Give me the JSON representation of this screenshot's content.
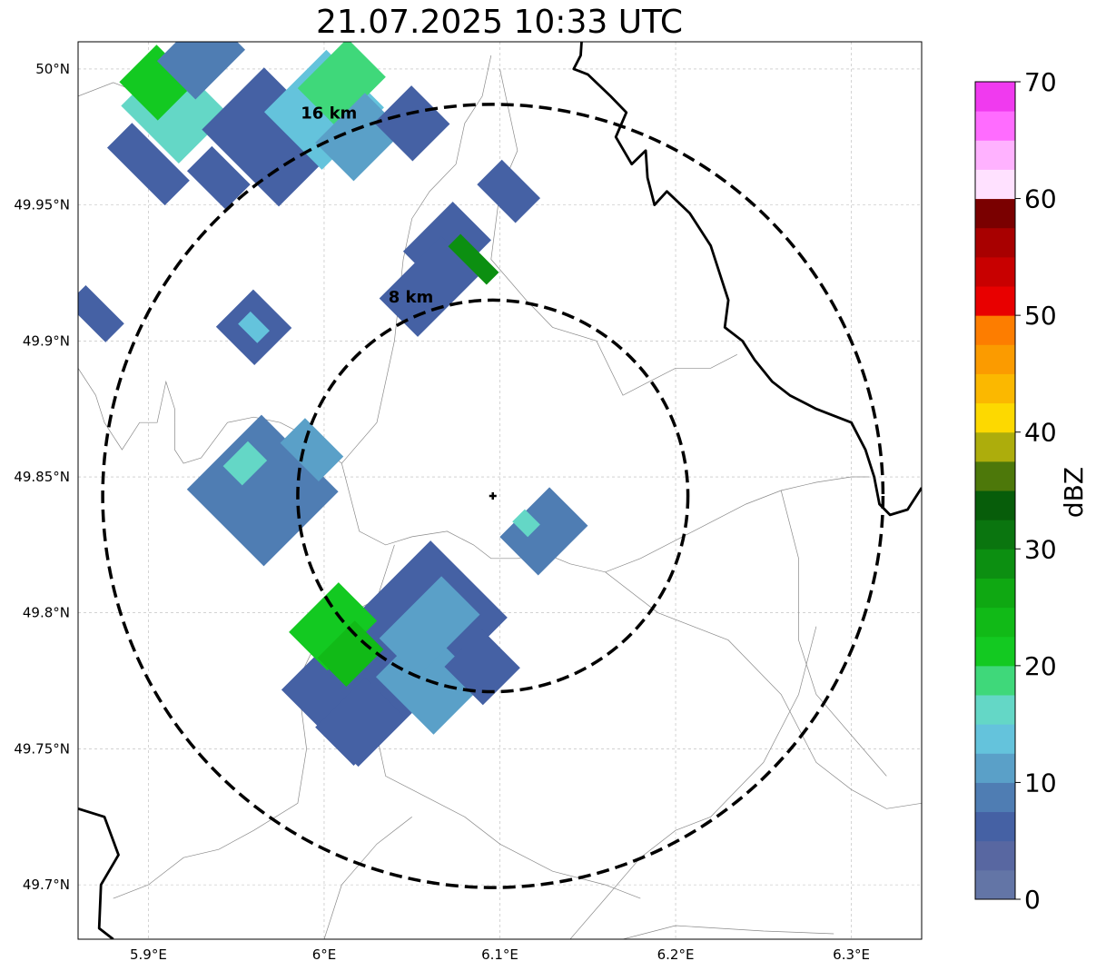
{
  "title": "21.07.2025 10:33 UTC",
  "map": {
    "lon_range": [
      5.86,
      6.34
    ],
    "lat_range": [
      49.68,
      50.01
    ],
    "lon_ticks": [
      {
        "value": 5.9,
        "label": "5.9°E"
      },
      {
        "value": 6.0,
        "label": "6°E"
      },
      {
        "value": 6.1,
        "label": "6.1°E"
      },
      {
        "value": 6.2,
        "label": "6.2°E"
      },
      {
        "value": 6.3,
        "label": "6.3°E"
      }
    ],
    "lat_ticks": [
      {
        "value": 49.7,
        "label": "49.7°N"
      },
      {
        "value": 49.75,
        "label": "49.75°N"
      },
      {
        "value": 49.8,
        "label": "49.8°N"
      },
      {
        "value": 49.85,
        "label": "49.85°N"
      },
      {
        "value": 49.9,
        "label": "49.9°N"
      },
      {
        "value": 49.95,
        "label": "49.95°N"
      },
      {
        "value": 50.0,
        "label": "50°N"
      }
    ],
    "grid": true,
    "radar_site": {
      "lon": 6.096,
      "lat": 49.843
    },
    "range_rings": [
      {
        "label": "8 km",
        "lat_radius": 0.072,
        "lon_radius": 0.111
      },
      {
        "label": "16 km",
        "lat_radius": 0.144,
        "lon_radius": 0.222
      }
    ],
    "national_border": [
      [
        [
          6.0,
          50.005
        ],
        [
          6.01,
          50.0
        ]
      ],
      [
        [
          6.147,
          50.015
        ],
        [
          6.146,
          50.005
        ],
        [
          6.142,
          50.0
        ],
        [
          6.15,
          49.998
        ],
        [
          6.163,
          49.99
        ],
        [
          6.172,
          49.984
        ],
        [
          6.166,
          49.975
        ],
        [
          6.175,
          49.965
        ],
        [
          6.183,
          49.97
        ],
        [
          6.184,
          49.96
        ],
        [
          6.188,
          49.95
        ],
        [
          6.195,
          49.955
        ],
        [
          6.208,
          49.947
        ],
        [
          6.215,
          49.94
        ],
        [
          6.22,
          49.935
        ],
        [
          6.225,
          49.925
        ],
        [
          6.23,
          49.915
        ],
        [
          6.228,
          49.905
        ],
        [
          6.238,
          49.9
        ],
        [
          6.245,
          49.893
        ],
        [
          6.255,
          49.885
        ],
        [
          6.265,
          49.88
        ],
        [
          6.28,
          49.875
        ],
        [
          6.3,
          49.87
        ],
        [
          6.308,
          49.86
        ],
        [
          6.313,
          49.85
        ],
        [
          6.316,
          49.84
        ],
        [
          6.322,
          49.836
        ],
        [
          6.332,
          49.838
        ],
        [
          6.34,
          49.846
        ]
      ],
      [
        [
          5.86,
          49.728
        ],
        [
          5.875,
          49.725
        ],
        [
          5.883,
          49.711
        ],
        [
          5.873,
          49.7
        ],
        [
          5.872,
          49.684
        ],
        [
          5.88,
          49.68
        ]
      ]
    ],
    "admin_lines": [
      [
        [
          5.86,
          49.99
        ],
        [
          5.88,
          49.995
        ],
        [
          5.9,
          49.99
        ],
        [
          5.915,
          49.985
        ],
        [
          5.92,
          49.97
        ]
      ],
      [
        [
          5.86,
          49.89
        ],
        [
          5.87,
          49.88
        ],
        [
          5.875,
          49.87
        ],
        [
          5.885,
          49.86
        ],
        [
          5.895,
          49.87
        ],
        [
          5.905,
          49.87
        ],
        [
          5.91,
          49.885
        ],
        [
          5.915,
          49.875
        ],
        [
          5.915,
          49.86
        ],
        [
          5.92,
          49.855
        ],
        [
          5.93,
          49.857
        ],
        [
          5.945,
          49.87
        ],
        [
          5.96,
          49.872
        ],
        [
          5.975,
          49.87
        ],
        [
          5.99,
          49.865
        ],
        [
          6.0,
          49.86
        ],
        [
          6.01,
          49.855
        ]
      ],
      [
        [
          6.01,
          49.855
        ],
        [
          6.02,
          49.83
        ],
        [
          6.035,
          49.825
        ],
        [
          6.05,
          49.828
        ],
        [
          6.07,
          49.83
        ],
        [
          6.085,
          49.825
        ],
        [
          6.095,
          49.82
        ],
        [
          6.11,
          49.82
        ],
        [
          6.125,
          49.822
        ],
        [
          6.14,
          49.818
        ],
        [
          6.16,
          49.815
        ],
        [
          6.18,
          49.82
        ],
        [
          6.21,
          49.83
        ],
        [
          6.24,
          49.84
        ],
        [
          6.26,
          49.845
        ],
        [
          6.28,
          49.848
        ],
        [
          6.3,
          49.85
        ],
        [
          6.31,
          49.85
        ]
      ],
      [
        [
          6.01,
          49.855
        ],
        [
          6.03,
          49.87
        ],
        [
          6.04,
          49.9
        ],
        [
          6.045,
          49.93
        ],
        [
          6.05,
          49.945
        ],
        [
          6.06,
          49.955
        ],
        [
          6.075,
          49.965
        ],
        [
          6.08,
          49.98
        ],
        [
          6.09,
          49.99
        ],
        [
          6.095,
          50.005
        ]
      ],
      [
        [
          6.1,
          50.0
        ],
        [
          6.105,
          49.985
        ],
        [
          6.11,
          49.97
        ],
        [
          6.1,
          49.955
        ],
        [
          6.095,
          49.93
        ],
        [
          6.115,
          49.915
        ],
        [
          6.13,
          49.905
        ],
        [
          6.155,
          49.9
        ],
        [
          6.17,
          49.88
        ],
        [
          6.185,
          49.885
        ],
        [
          6.2,
          49.89
        ],
        [
          6.22,
          49.89
        ],
        [
          6.235,
          49.895
        ]
      ],
      [
        [
          6.04,
          49.825
        ],
        [
          6.03,
          49.805
        ],
        [
          6.0,
          49.795
        ],
        [
          5.985,
          49.775
        ],
        [
          5.99,
          49.75
        ],
        [
          5.985,
          49.73
        ],
        [
          5.96,
          49.72
        ],
        [
          5.94,
          49.713
        ],
        [
          5.92,
          49.71
        ],
        [
          5.9,
          49.7
        ],
        [
          5.88,
          49.695
        ]
      ],
      [
        [
          6.0,
          49.795
        ],
        [
          6.025,
          49.77
        ],
        [
          6.03,
          49.755
        ],
        [
          6.035,
          49.74
        ],
        [
          6.05,
          49.735
        ],
        [
          6.08,
          49.725
        ],
        [
          6.1,
          49.715
        ],
        [
          6.13,
          49.705
        ],
        [
          6.16,
          49.7
        ],
        [
          6.18,
          49.695
        ]
      ],
      [
        [
          6.16,
          49.815
        ],
        [
          6.19,
          49.8
        ],
        [
          6.23,
          49.79
        ],
        [
          6.26,
          49.77
        ],
        [
          6.28,
          49.745
        ],
        [
          6.3,
          49.735
        ],
        [
          6.32,
          49.728
        ],
        [
          6.34,
          49.73
        ]
      ],
      [
        [
          6.14,
          49.68
        ],
        [
          6.16,
          49.695
        ],
        [
          6.18,
          49.71
        ],
        [
          6.2,
          49.72
        ],
        [
          6.22,
          49.725
        ],
        [
          6.25,
          49.745
        ],
        [
          6.27,
          49.77
        ],
        [
          6.28,
          49.795
        ]
      ],
      [
        [
          6.26,
          49.845
        ],
        [
          6.27,
          49.82
        ],
        [
          6.27,
          49.79
        ],
        [
          6.28,
          49.77
        ],
        [
          6.3,
          49.755
        ],
        [
          6.32,
          49.74
        ]
      ],
      [
        [
          6.0,
          49.68
        ],
        [
          6.01,
          49.7
        ],
        [
          6.03,
          49.715
        ],
        [
          6.05,
          49.725
        ]
      ],
      [
        [
          6.17,
          49.68
        ],
        [
          6.2,
          49.685
        ],
        [
          6.25,
          49.683
        ],
        [
          6.29,
          49.682
        ]
      ]
    ],
    "ring_labels": [
      "16 km",
      "8 km"
    ],
    "cells": [
      {
        "lon": 5.915,
        "lat": 49.985,
        "angle": -45,
        "w": 0.04,
        "h": 0.03,
        "value": 16
      },
      {
        "lon": 5.905,
        "lat": 49.995,
        "angle": -45,
        "w": 0.03,
        "h": 0.02,
        "value": 22
      },
      {
        "lon": 5.93,
        "lat": 50.005,
        "angle": -45,
        "w": 0.04,
        "h": 0.02,
        "value": 8
      },
      {
        "lon": 5.9,
        "lat": 49.965,
        "angle": -45,
        "w": 0.02,
        "h": 0.03,
        "value": 6
      },
      {
        "lon": 5.97,
        "lat": 49.975,
        "angle": -45,
        "w": 0.05,
        "h": 0.04,
        "value": 6
      },
      {
        "lon": 6.0,
        "lat": 49.985,
        "angle": -45,
        "w": 0.05,
        "h": 0.03,
        "value": 14
      },
      {
        "lon": 6.01,
        "lat": 49.995,
        "angle": -45,
        "w": 0.04,
        "h": 0.02,
        "value": 18
      },
      {
        "lon": 6.02,
        "lat": 49.975,
        "angle": -45,
        "w": 0.04,
        "h": 0.02,
        "value": 10
      },
      {
        "lon": 6.05,
        "lat": 49.98,
        "angle": -45,
        "w": 0.03,
        "h": 0.02,
        "value": 6
      },
      {
        "lon": 5.94,
        "lat": 49.96,
        "angle": -45,
        "w": 0.02,
        "h": 0.02,
        "value": 5
      },
      {
        "lon": 6.07,
        "lat": 49.935,
        "angle": -45,
        "w": 0.04,
        "h": 0.02,
        "value": 5
      },
      {
        "lon": 6.06,
        "lat": 49.92,
        "angle": -45,
        "w": 0.05,
        "h": 0.02,
        "value": 6
      },
      {
        "lon": 6.085,
        "lat": 49.93,
        "angle": -45,
        "w": 0.01,
        "h": 0.02,
        "value": 28
      },
      {
        "lon": 6.105,
        "lat": 49.955,
        "angle": -45,
        "w": 0.02,
        "h": 0.02,
        "value": 6
      },
      {
        "lon": 5.87,
        "lat": 49.91,
        "angle": -45,
        "w": 0.015,
        "h": 0.02,
        "value": 5
      },
      {
        "lon": 5.96,
        "lat": 49.905,
        "angle": -45,
        "w": 0.03,
        "h": 0.02,
        "value": 6
      },
      {
        "lon": 5.96,
        "lat": 49.905,
        "angle": -45,
        "w": 0.01,
        "h": 0.01,
        "value": 14
      },
      {
        "lon": 5.965,
        "lat": 49.845,
        "angle": -45,
        "w": 0.06,
        "h": 0.04,
        "value": 8
      },
      {
        "lon": 5.955,
        "lat": 49.855,
        "angle": -45,
        "w": 0.02,
        "h": 0.01,
        "value": 15
      },
      {
        "lon": 5.993,
        "lat": 49.86,
        "angle": -45,
        "w": 0.02,
        "h": 0.02,
        "value": 12
      },
      {
        "lon": 6.125,
        "lat": 49.83,
        "angle": -45,
        "w": 0.04,
        "h": 0.02,
        "value": 8
      },
      {
        "lon": 6.115,
        "lat": 49.833,
        "angle": -45,
        "w": 0.01,
        "h": 0.008,
        "value": 15
      },
      {
        "lon": 6.04,
        "lat": 49.785,
        "angle": -45,
        "w": 0.12,
        "h": 0.04,
        "value": 6
      },
      {
        "lon": 6.06,
        "lat": 49.775,
        "angle": -45,
        "w": 0.04,
        "h": 0.03,
        "value": 12
      },
      {
        "lon": 6.005,
        "lat": 49.795,
        "angle": -45,
        "w": 0.04,
        "h": 0.02,
        "value": 20
      },
      {
        "lon": 6.015,
        "lat": 49.785,
        "angle": -45,
        "w": 0.03,
        "h": 0.015,
        "value": 23
      },
      {
        "lon": 6.06,
        "lat": 49.795,
        "angle": -45,
        "w": 0.05,
        "h": 0.02,
        "value": 11
      },
      {
        "lon": 6.02,
        "lat": 49.76,
        "angle": -45,
        "w": 0.04,
        "h": 0.02,
        "value": 5
      },
      {
        "lon": 6.09,
        "lat": 49.78,
        "angle": -45,
        "w": 0.03,
        "h": 0.02,
        "value": 7
      }
    ]
  },
  "colorbar": {
    "label": "dBZ",
    "min": 0,
    "max": 70,
    "tick_labels": [
      "0",
      "10",
      "20",
      "30",
      "40",
      "50",
      "60",
      "70"
    ],
    "colors": [
      "#6375a6",
      "#5867a1",
      "#4561a4",
      "#4f7db3",
      "#5aa0c8",
      "#64c3dc",
      "#64d7c6",
      "#3fd87a",
      "#13c921",
      "#11ba17",
      "#0fa812",
      "#0c8f11",
      "#0a750f",
      "#075d0a",
      "#4d780a",
      "#adad0c",
      "#fdd900",
      "#fbb800",
      "#fb9b00",
      "#fd7d00",
      "#e80000",
      "#c80000",
      "#a80000",
      "#7a0000",
      "#ffe1ff",
      "#ffb2ff",
      "#ff6cff",
      "#f03aef"
    ]
  }
}
